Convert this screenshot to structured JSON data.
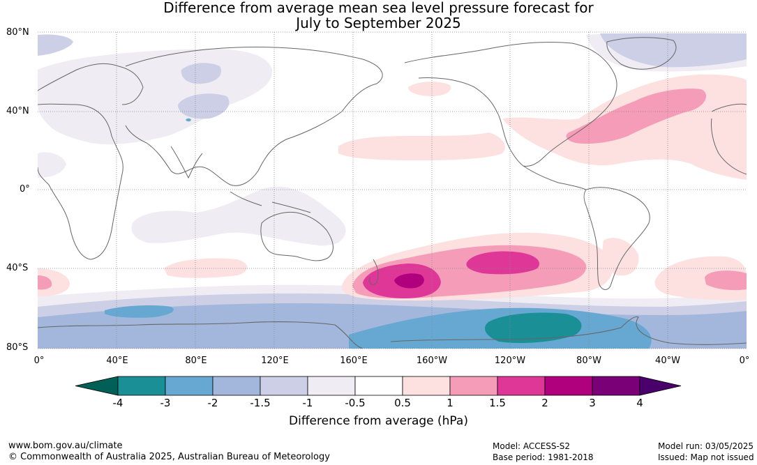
{
  "title": {
    "line1": "Difference from average mean sea level pressure forecast for",
    "line2": "July to September 2025"
  },
  "axes": {
    "lat_labels": [
      "80°N",
      "40°N",
      "0°",
      "40°S",
      "80°S"
    ],
    "lon_labels": [
      "0°",
      "40°E",
      "80°E",
      "120°E",
      "160°E",
      "160°W",
      "120°W",
      "80°W",
      "40°W",
      "0°"
    ]
  },
  "colorbar": {
    "title": "Difference from average (hPa)",
    "ticks": [
      "-4",
      "-3",
      "-2",
      "-1.5",
      "-1",
      "-0.5",
      "0.5",
      "1",
      "1.5",
      "2",
      "3",
      "4"
    ],
    "colors": [
      "#005f56",
      "#1a8f96",
      "#66a8d1",
      "#a2b7db",
      "#cccfe5",
      "#efecf3",
      "#ffffff",
      "#fde0e0",
      "#f59cb8",
      "#de3797",
      "#b0007e",
      "#7a0077",
      "#4a006a"
    ]
  },
  "footer": {
    "website": "www.bom.gov.au/climate",
    "copyright": "© Commonwealth of Australia 2025, Australian Bureau of Meteorology",
    "model": "Model: ACCESS-S2",
    "base_period": "Base period: 1981-2018",
    "model_run": "Model run: 03/05/2025",
    "issued": "Issued: Map not issued"
  }
}
